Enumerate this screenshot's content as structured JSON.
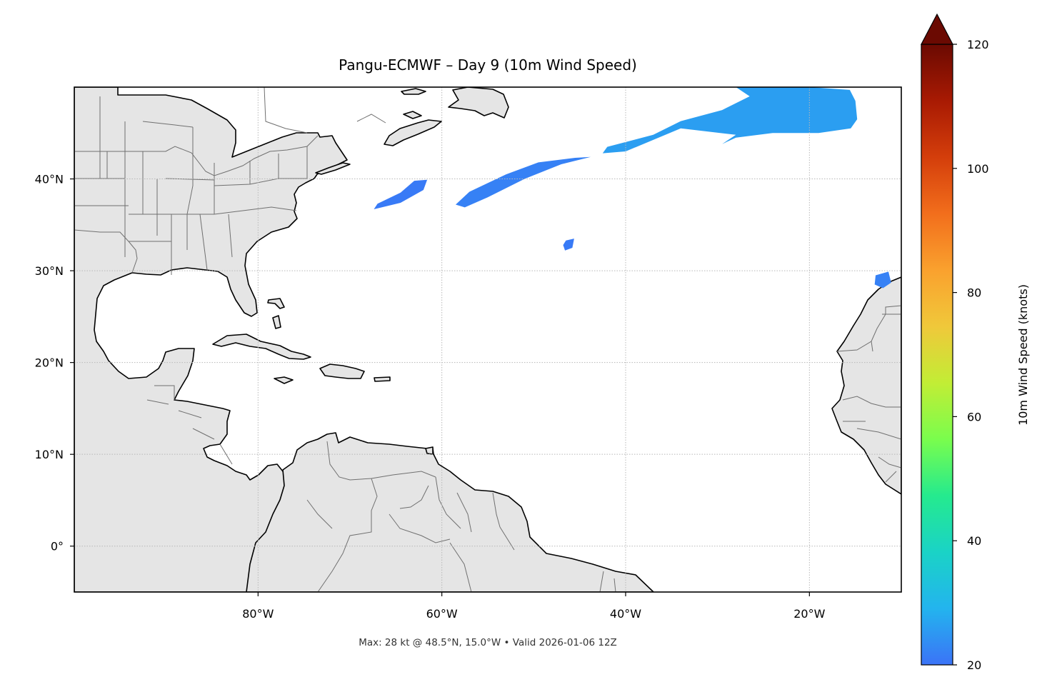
{
  "title": "Pangu-ECMWF – Day 9 (10m Wind Speed)",
  "caption": "Max: 28 kt @ 48.5°N, 15.0°W • Valid 2026-01-06 12Z",
  "map": {
    "lon_range": [
      -100,
      -10
    ],
    "lat_range": [
      -5,
      50
    ],
    "gridlines": "dotted",
    "land_color": "#e5e5e5",
    "coastline_color": "#000000",
    "border_color": "#707070",
    "lon_ticks": [
      {
        "value": -80,
        "label": "80°W"
      },
      {
        "value": -60,
        "label": "60°W"
      },
      {
        "value": -40,
        "label": "40°W"
      },
      {
        "value": -20,
        "label": "20°W"
      }
    ],
    "lat_ticks": [
      {
        "value": 40,
        "label": "40°N"
      },
      {
        "value": 30,
        "label": "30°N"
      },
      {
        "value": 20,
        "label": "20°N"
      },
      {
        "value": 10,
        "label": "10°N"
      },
      {
        "value": 0,
        "label": "0°"
      }
    ]
  },
  "colorbar": {
    "label": "10m Wind Speed (knots)",
    "colormap": "turbo",
    "min": 20,
    "max": 120,
    "extend": "max",
    "ticks": [
      {
        "value": 20,
        "label": "20"
      },
      {
        "value": 40,
        "label": "40"
      },
      {
        "value": 60,
        "label": "60"
      },
      {
        "value": 80,
        "label": "80"
      },
      {
        "value": 100,
        "label": "100"
      },
      {
        "value": 120,
        "label": "120"
      }
    ],
    "stops": [
      "#3b73f7",
      "#23b4ee",
      "#1ad3c6",
      "#25ea8e",
      "#7afd4d",
      "#c2ed35",
      "#f0c83a",
      "#faa12e",
      "#f26e1c",
      "#d43e0b",
      "#a81a03",
      "#6b0a02"
    ]
  },
  "wind_regions": [
    {
      "name": "Northeast Atlantic jet",
      "speed_kt": 26,
      "lonlat": [
        [
          -28,
          50
        ],
        [
          -20,
          50
        ],
        [
          -15.6,
          49.7
        ],
        [
          -15,
          48.5
        ],
        [
          -14.8,
          46.5
        ],
        [
          -15.5,
          45.5
        ],
        [
          -19,
          45
        ],
        [
          -24,
          45
        ],
        [
          -28,
          44.5
        ],
        [
          -29.5,
          43.8
        ],
        [
          -28,
          44.8
        ],
        [
          -34,
          45.5
        ],
        [
          -40,
          43
        ],
        [
          -42.5,
          42.8
        ],
        [
          -42,
          43.5
        ],
        [
          -37,
          44.8
        ],
        [
          -34,
          46.3
        ],
        [
          -29.5,
          47.5
        ],
        [
          -26.5,
          49
        ]
      ]
    },
    {
      "name": "Mid-Atlantic band",
      "speed_kt": 22,
      "lonlat": [
        [
          -45.5,
          42.3
        ],
        [
          -43.8,
          42.4
        ],
        [
          -47,
          41.6
        ],
        [
          -51,
          40
        ],
        [
          -55,
          38
        ],
        [
          -57.5,
          36.9
        ],
        [
          -58.5,
          37.2
        ],
        [
          -57,
          38.6
        ],
        [
          -53,
          40.5
        ],
        [
          -49.5,
          41.8
        ]
      ]
    },
    {
      "name": "West Atlantic band",
      "speed_kt": 21,
      "lonlat": [
        [
          -63,
          39.8
        ],
        [
          -61.6,
          39.9
        ],
        [
          -62,
          38.8
        ],
        [
          -64.5,
          37.4
        ],
        [
          -67.4,
          36.7
        ],
        [
          -67,
          37.3
        ],
        [
          -64.5,
          38.5
        ]
      ]
    },
    {
      "name": "Central Atlantic spot",
      "speed_kt": 21,
      "lonlat": [
        [
          -46.5,
          33.3
        ],
        [
          -45.6,
          33.5
        ],
        [
          -45.8,
          32.5
        ],
        [
          -46.6,
          32.2
        ],
        [
          -46.8,
          32.8
        ]
      ]
    },
    {
      "name": "Canary spot",
      "speed_kt": 22,
      "lonlat": [
        [
          -12.8,
          29.5
        ],
        [
          -11.4,
          29.9
        ],
        [
          -11.1,
          28.7
        ],
        [
          -12,
          28.1
        ],
        [
          -12.9,
          28.5
        ]
      ]
    }
  ]
}
